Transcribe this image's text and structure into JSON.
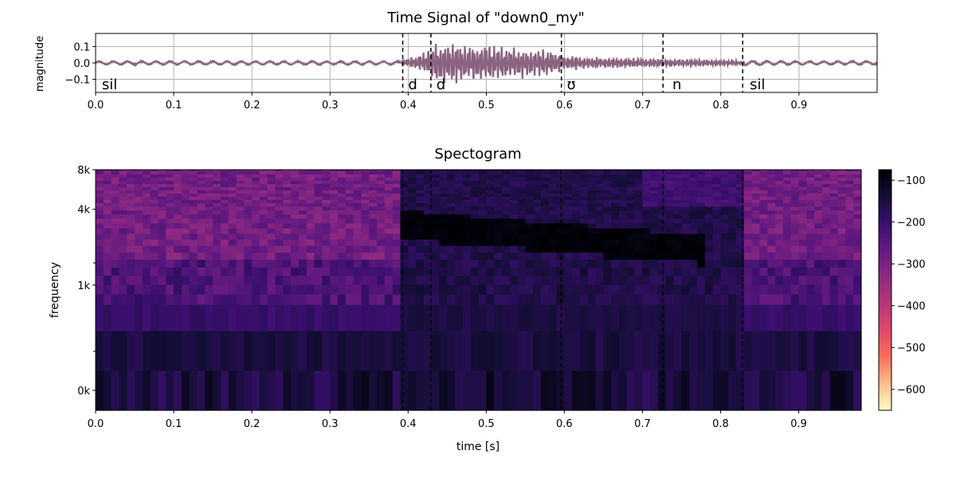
{
  "chart_data": [
    {
      "type": "line",
      "title": "Time Signal of \"down0_my\"",
      "ylabel": "magnitude",
      "xlabel": "",
      "xlim": [
        0.0,
        1.0
      ],
      "ylim": [
        -0.18,
        0.18
      ],
      "grid": true,
      "x_ticks": [
        {
          "value": 0.0,
          "label": "0.0"
        },
        {
          "value": 0.1,
          "label": "0.1"
        },
        {
          "value": 0.2,
          "label": "0.2"
        },
        {
          "value": 0.3,
          "label": "0.3"
        },
        {
          "value": 0.4,
          "label": "0.4"
        },
        {
          "value": 0.5,
          "label": "0.5"
        },
        {
          "value": 0.6,
          "label": "0.6"
        },
        {
          "value": 0.7,
          "label": "0.7"
        },
        {
          "value": 0.8,
          "label": "0.8"
        },
        {
          "value": 0.9,
          "label": "0.9"
        }
      ],
      "y_ticks": [
        {
          "value": 0.1,
          "label": "0.1"
        },
        {
          "value": 0.0,
          "label": "0.0"
        },
        {
          "value": -0.1,
          "label": "−0.1"
        }
      ],
      "color": "#8a6380",
      "envelope": {
        "x": [
          0.0,
          0.39,
          0.395,
          0.42,
          0.43,
          0.445,
          0.455,
          0.47,
          0.5,
          0.55,
          0.595,
          0.6,
          0.65,
          0.7,
          0.725,
          0.76,
          0.8,
          0.83,
          0.9,
          1.0
        ],
        "top": [
          0.012,
          0.012,
          0.03,
          0.07,
          0.14,
          0.12,
          0.17,
          0.12,
          0.12,
          0.1,
          0.08,
          0.05,
          0.035,
          0.03,
          0.028,
          0.025,
          0.02,
          0.015,
          0.012,
          0.012
        ],
        "bottom": [
          -0.012,
          -0.012,
          -0.02,
          -0.05,
          -0.12,
          -0.15,
          -0.13,
          -0.14,
          -0.12,
          -0.1,
          -0.07,
          -0.05,
          -0.035,
          -0.03,
          -0.025,
          -0.022,
          -0.02,
          -0.015,
          -0.012,
          -0.012
        ]
      },
      "segment_boundaries": [
        0.393,
        0.429,
        0.596,
        0.726,
        0.828
      ],
      "segment_labels": [
        {
          "x": 0.008,
          "label": "sil"
        },
        {
          "x": 0.4,
          "label": "d"
        },
        {
          "x": 0.436,
          "label": "d"
        },
        {
          "x": 0.603,
          "label": "ʊ"
        },
        {
          "x": 0.738,
          "label": "n"
        },
        {
          "x": 0.837,
          "label": "sil"
        }
      ]
    },
    {
      "type": "heatmap",
      "title": "Spectogram",
      "xlabel": "time [s]",
      "ylabel": "frequency",
      "xlim": [
        0.0,
        0.98
      ],
      "x_ticks": [
        {
          "value": 0.0,
          "label": "0.0"
        },
        {
          "value": 0.1,
          "label": "0.1"
        },
        {
          "value": 0.2,
          "label": "0.2"
        },
        {
          "value": 0.3,
          "label": "0.3"
        },
        {
          "value": 0.4,
          "label": "0.4"
        },
        {
          "value": 0.5,
          "label": "0.5"
        },
        {
          "value": 0.6,
          "label": "0.6"
        },
        {
          "value": 0.7,
          "label": "0.7"
        },
        {
          "value": 0.8,
          "label": "0.8"
        },
        {
          "value": 0.9,
          "label": "0.9"
        }
      ],
      "y_scale": "log",
      "y_ticks": [
        {
          "value": 8000,
          "label": "8k"
        },
        {
          "value": 4000,
          "label": "4k"
        },
        {
          "value": 1000,
          "label": "1k"
        },
        {
          "value": 0,
          "label": "0k"
        }
      ],
      "segment_boundaries": [
        0.393,
        0.429,
        0.596,
        0.726,
        0.828
      ],
      "colorbar": {
        "range": [
          -650,
          -75
        ],
        "ticks": [
          {
            "value": -100,
            "label": "−100"
          },
          {
            "value": -200,
            "label": "−200"
          },
          {
            "value": -300,
            "label": "−300"
          },
          {
            "value": -400,
            "label": "−400"
          },
          {
            "value": -500,
            "label": "−500"
          },
          {
            "value": -600,
            "label": "−600"
          }
        ],
        "colors": [
          "#fcfdbf",
          "#fcbe8d",
          "#f7705c",
          "#de4968",
          "#b5367a",
          "#8c2981",
          "#641a80",
          "#3b0f70",
          "#140e36",
          "#000004"
        ]
      },
      "typical_levels_db": {
        "silence_high_band": -290,
        "speech_high_band": -160,
        "formant_band_peak": -95,
        "low_band": -150
      }
    }
  ]
}
